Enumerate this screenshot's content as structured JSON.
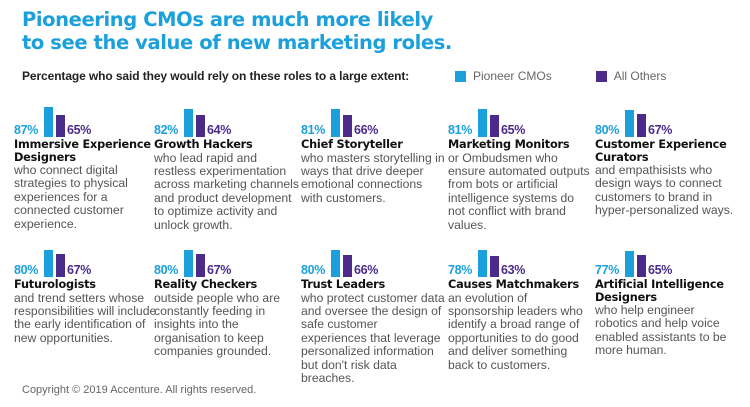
{
  "title_line1": "Pioneering CMOs are much more likely",
  "title_line2": "to see the value of new marketing roles.",
  "subtitle": "Percentage who said they would rely on these roles to a large extent:",
  "legend": [
    {
      "label": "Pioneer CMOs",
      "color": "#1ba0dc"
    },
    {
      "label": "All Others",
      "color": "#4b2a8a"
    }
  ],
  "copyright": "Copyright © 2019 Accenture. All rights reserved.",
  "chart_data": {
    "type": "bar",
    "title": "Pioneering CMOs are much more likely to see the value of new marketing roles.",
    "subtitle": "Percentage who said they would rely on these roles to a large extent:",
    "xlabel": "",
    "ylabel": "",
    "ylim": [
      0,
      100
    ],
    "legend_position": "top-right",
    "categories": [
      "Immersive Experience Designers",
      "Growth Hackers",
      "Chief Storyteller",
      "Marketing Monitors",
      "Customer Experience Curators",
      "Futurologists",
      "Reality Checkers",
      "Trust Leaders",
      "Causes Matchmakers",
      "Artificial Intelligence Designers"
    ],
    "series": [
      {
        "name": "Pioneer CMOs",
        "color": "#1ba0dc",
        "values": [
          87,
          82,
          81,
          81,
          80,
          80,
          80,
          80,
          78,
          77
        ]
      },
      {
        "name": "All Others",
        "color": "#4b2a8a",
        "values": [
          65,
          64,
          66,
          65,
          67,
          67,
          67,
          66,
          63,
          65
        ]
      }
    ]
  },
  "roles": [
    {
      "title": "Immersive Experience Designers",
      "pioneer": "87%",
      "others": "65%",
      "desc": "who connect digital strategies to physical experiences for a connected customer experience."
    },
    {
      "title": "Growth Hackers",
      "pioneer": "82%",
      "others": "64%",
      "desc": "who lead rapid and restless experimentation across marketing channels and product development to optimize activity and unlock growth."
    },
    {
      "title": "Chief Storyteller",
      "pioneer": "81%",
      "others": "66%",
      "desc": "who masters storytelling in ways that drive deeper emotional connections with customers."
    },
    {
      "title": "Marketing Monitors",
      "pioneer": "81%",
      "others": "65%",
      "desc": "or Ombudsmen who ensure automated outputs from bots or artificial intelligence systems do not conflict with brand values."
    },
    {
      "title": "Customer Experience Curators",
      "pioneer": "80%",
      "others": "67%",
      "desc": "and empathisists who design ways to connect customers to brand in hyper-personalized ways."
    },
    {
      "title": "Futurologists",
      "pioneer": "80%",
      "others": "67%",
      "desc": "and trend setters whose responsibilities will include the early identification of new opportunities."
    },
    {
      "title": "Reality Checkers",
      "pioneer": "80%",
      "others": "67%",
      "desc": "outside people who are constantly feeding in insights into the organisation to keep companies grounded."
    },
    {
      "title": "Trust Leaders",
      "pioneer": "80%",
      "others": "66%",
      "desc": "who protect customer data and oversee the design of safe customer experiences that leverage personalized information but don't risk data breaches."
    },
    {
      "title": "Causes Matchmakers",
      "pioneer": "78%",
      "others": "63%",
      "desc": "an evolution of sponsorship leaders who identify a broad range of opportunities to do good and deliver something back to customers."
    },
    {
      "title": "Artificial Intelligence Designers",
      "pioneer": "77%",
      "others": "65%",
      "desc": "who help engineer robotics and help voice enabled assistants to be more human."
    }
  ]
}
